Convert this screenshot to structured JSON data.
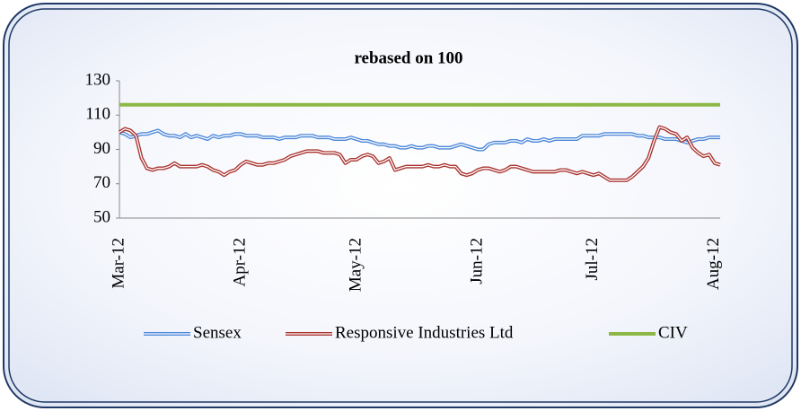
{
  "chart_data": {
    "type": "line",
    "title": "rebased on 100",
    "categories": [
      "Mar-12",
      null,
      null,
      null,
      null,
      null,
      null,
      null,
      null,
      null,
      null,
      null,
      null,
      null,
      null,
      null,
      null,
      null,
      null,
      null,
      null,
      null,
      "Apr-12",
      null,
      null,
      null,
      null,
      null,
      null,
      null,
      null,
      null,
      null,
      null,
      null,
      null,
      null,
      null,
      null,
      null,
      null,
      null,
      null,
      "May-12",
      null,
      null,
      null,
      null,
      null,
      null,
      null,
      null,
      null,
      null,
      null,
      null,
      null,
      null,
      null,
      null,
      null,
      null,
      null,
      null,
      null,
      "Jun-12",
      null,
      null,
      null,
      null,
      null,
      null,
      null,
      null,
      null,
      null,
      null,
      null,
      null,
      null,
      null,
      null,
      null,
      null,
      null,
      null,
      "Jul-12",
      null,
      null,
      null,
      null,
      null,
      null,
      null,
      null,
      null,
      null,
      null,
      null,
      null,
      null,
      null,
      null,
      null,
      null,
      null,
      null,
      null,
      "Aug-12",
      null
    ],
    "series": [
      {
        "name": "Sensex",
        "color": "#4a86d8",
        "values": [
          100,
          99,
          97,
          98,
          99,
          99,
          100,
          101,
          99,
          98,
          98,
          97,
          99,
          97,
          98,
          97,
          96,
          98,
          97,
          98,
          98,
          99,
          99,
          98,
          98,
          98,
          97,
          97,
          97,
          96,
          97,
          97,
          97,
          98,
          98,
          98,
          97,
          97,
          97,
          96,
          96,
          96,
          97,
          96,
          95,
          95,
          94,
          93,
          93,
          92,
          92,
          91,
          91,
          92,
          91,
          91,
          92,
          92,
          91,
          91,
          91,
          92,
          93,
          92,
          91,
          90,
          90,
          93,
          94,
          94,
          94,
          95,
          95,
          94,
          96,
          95,
          95,
          96,
          95,
          96,
          96,
          96,
          96,
          96,
          98,
          98,
          98,
          98,
          99,
          99,
          99,
          99,
          99,
          99,
          98,
          98,
          97,
          97,
          97,
          96,
          96,
          96,
          95,
          94,
          95,
          96,
          96,
          97,
          97,
          97
        ]
      },
      {
        "name": "Responsive Industries Ltd",
        "color": "#a8322e",
        "values": [
          100,
          102,
          101,
          98,
          85,
          79,
          78,
          79,
          79,
          80,
          82,
          80,
          80,
          80,
          80,
          81,
          80,
          78,
          77,
          75,
          77,
          78,
          81,
          83,
          82,
          81,
          81,
          82,
          82,
          83,
          84,
          86,
          87,
          88,
          89,
          89,
          89,
          88,
          88,
          88,
          87,
          82,
          84,
          84,
          86,
          87,
          86,
          82,
          83,
          85,
          78,
          79,
          80,
          80,
          80,
          80,
          81,
          80,
          80,
          81,
          80,
          80,
          76,
          75,
          76,
          78,
          79,
          79,
          78,
          77,
          78,
          80,
          80,
          79,
          78,
          77,
          77,
          77,
          77,
          77,
          78,
          78,
          77,
          76,
          77,
          76,
          75,
          76,
          74,
          72,
          72,
          72,
          72,
          74,
          77,
          80,
          85,
          95,
          103,
          102,
          100,
          99,
          95,
          97,
          91,
          88,
          86,
          87,
          82,
          81
        ]
      },
      {
        "name": "CIV",
        "color": "#8db845",
        "values": [
          116,
          116,
          116,
          116,
          116,
          116,
          116,
          116,
          116,
          116,
          116,
          116,
          116,
          116,
          116,
          116,
          116,
          116,
          116,
          116,
          116,
          116,
          116,
          116,
          116,
          116,
          116,
          116,
          116,
          116,
          116,
          116,
          116,
          116,
          116,
          116,
          116,
          116,
          116,
          116,
          116,
          116,
          116,
          116,
          116,
          116,
          116,
          116,
          116,
          116,
          116,
          116,
          116,
          116,
          116,
          116,
          116,
          116,
          116,
          116,
          116,
          116,
          116,
          116,
          116,
          116,
          116,
          116,
          116,
          116,
          116,
          116,
          116,
          116,
          116,
          116,
          116,
          116,
          116,
          116,
          116,
          116,
          116,
          116,
          116,
          116,
          116,
          116,
          116,
          116,
          116,
          116,
          116,
          116,
          116,
          116,
          116,
          116,
          116,
          116,
          116,
          116,
          116,
          116,
          116,
          116,
          116,
          116,
          116,
          116
        ]
      }
    ],
    "ylim": [
      50,
      130
    ],
    "yticks": [
      50,
      70,
      90,
      110,
      130
    ],
    "legend": "bottom"
  }
}
